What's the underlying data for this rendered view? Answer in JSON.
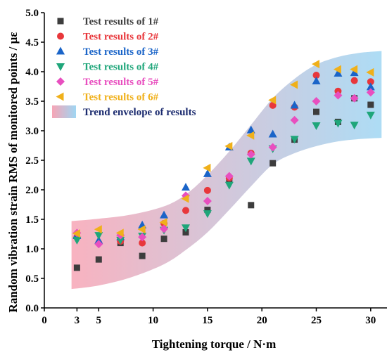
{
  "chart_data": {
    "type": "scatter",
    "xlabel": "Tightening torque / N·m",
    "ylabel": "Random vibration strain RMS of  monitored points / με",
    "xlim": [
      0,
      31.5
    ],
    "ylim": [
      0,
      5.0
    ],
    "x_ticks": [
      {
        "value": 0,
        "label": "0"
      },
      {
        "value": 3,
        "label": "3"
      },
      {
        "value": 5,
        "label": "5"
      },
      {
        "value": 10,
        "label": "10"
      },
      {
        "value": 15,
        "label": "15"
      },
      {
        "value": 20,
        "label": "20"
      },
      {
        "value": 25,
        "label": "25"
      },
      {
        "value": 30,
        "label": "30"
      }
    ],
    "y_ticks": [
      "0.0",
      "0.5",
      "1.0",
      "1.5",
      "2.0",
      "2.5",
      "3.0",
      "3.5",
      "4.0",
      "4.5",
      "5.0"
    ],
    "grid": false,
    "legend_position": "top-left",
    "series": [
      {
        "name": "Test results of 1#",
        "marker": "square",
        "color": "#3d3d3d",
        "x": [
          3,
          5,
          7,
          9,
          11,
          13,
          15,
          17,
          19,
          21,
          23,
          25,
          27,
          28.5,
          30
        ],
        "y": [
          0.68,
          0.82,
          1.1,
          0.88,
          1.17,
          1.28,
          1.66,
          2.17,
          1.74,
          2.45,
          2.85,
          3.32,
          3.15,
          3.55,
          3.44
        ]
      },
      {
        "name": "Test results of 2#",
        "marker": "circle",
        "color": "#e8373b",
        "x": [
          3,
          5,
          7,
          9,
          11,
          13,
          15,
          17,
          19,
          21,
          23,
          25,
          27,
          28.5,
          30
        ],
        "y": [
          1.2,
          1.1,
          1.13,
          1.1,
          1.43,
          1.65,
          1.99,
          2.2,
          2.62,
          3.43,
          3.4,
          3.94,
          3.67,
          3.85,
          3.83
        ]
      },
      {
        "name": "Test results of 3#",
        "marker": "triangle-up",
        "color": "#1a64c8",
        "x": [
          3,
          5,
          7,
          9,
          11,
          13,
          15,
          17,
          19,
          21,
          23,
          25,
          27,
          28.5,
          30
        ],
        "y": [
          1.22,
          1.14,
          1.2,
          1.4,
          1.57,
          2.04,
          2.27,
          2.72,
          3.01,
          2.94,
          3.43,
          3.84,
          3.97,
          3.98,
          3.74
        ]
      },
      {
        "name": "Test results of 4#",
        "marker": "triangle-down",
        "color": "#1fa67a",
        "x": [
          3,
          5,
          7,
          9,
          11,
          13,
          15,
          17,
          19,
          21,
          23,
          25,
          27,
          28.5,
          30
        ],
        "y": [
          1.15,
          1.23,
          1.15,
          1.22,
          1.32,
          1.36,
          1.6,
          2.08,
          2.49,
          2.7,
          2.86,
          3.09,
          3.13,
          3.1,
          3.27
        ]
      },
      {
        "name": "Test results of 5#",
        "marker": "diamond",
        "color": "#e84fbf",
        "x": [
          3,
          5,
          7,
          9,
          11,
          13,
          15,
          17,
          19,
          21,
          23,
          25,
          27,
          28.5,
          30
        ],
        "y": [
          1.27,
          1.08,
          1.23,
          1.2,
          1.34,
          1.9,
          1.81,
          2.23,
          2.6,
          2.72,
          3.18,
          3.5,
          3.6,
          3.55,
          3.65
        ]
      },
      {
        "name": "Test results of 6#",
        "marker": "triangle-left",
        "color": "#f0b01a",
        "x": [
          3,
          5,
          7,
          9,
          11,
          13,
          15,
          17,
          19,
          21,
          23,
          25,
          27,
          28.5,
          30
        ],
        "y": [
          1.26,
          1.33,
          1.27,
          1.33,
          1.45,
          1.85,
          2.37,
          2.74,
          2.92,
          3.52,
          3.78,
          4.13,
          4.04,
          4.04,
          3.99
        ]
      }
    ],
    "envelope": {
      "name": "Trend envelope of results",
      "color_start": "#f7a5b5",
      "color_end": "#9fd6f3",
      "upper": {
        "x": [
          2.5,
          5,
          8,
          11,
          13,
          15,
          17,
          19,
          21,
          23,
          25,
          27,
          29,
          31
        ],
        "y": [
          1.47,
          1.51,
          1.58,
          1.72,
          1.92,
          2.25,
          2.65,
          3.1,
          3.55,
          3.88,
          4.12,
          4.25,
          4.32,
          4.35
        ]
      },
      "lower": {
        "x": [
          2.5,
          5,
          8,
          11,
          13,
          15,
          17,
          19,
          21,
          23,
          25,
          27,
          29,
          31
        ],
        "y": [
          0.32,
          0.38,
          0.52,
          0.74,
          0.98,
          1.28,
          1.66,
          2.06,
          2.43,
          2.62,
          2.74,
          2.82,
          2.86,
          2.88
        ]
      }
    }
  }
}
